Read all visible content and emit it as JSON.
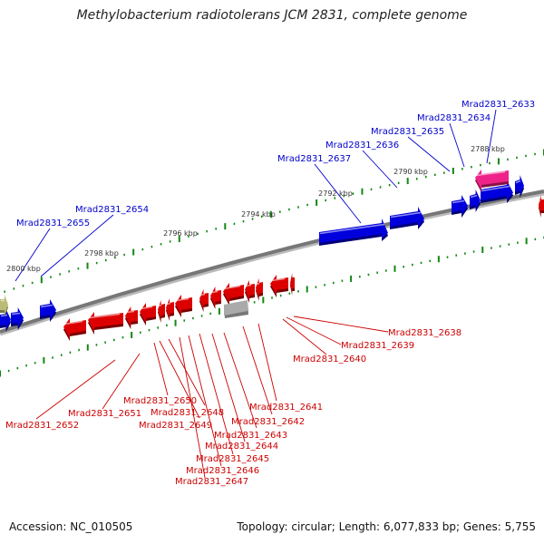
{
  "title": "Methylobacterium radiotolerans JCM 2831, complete genome",
  "footer": {
    "accession": "Accession: NC_010505",
    "summary": "Topology: circular; Length: 6,077,833 bp; Genes: 5,755"
  },
  "colors": {
    "forward_gene": "#0000dd",
    "reverse_gene": "#dd0000",
    "pink_gene": "#ee2288",
    "grey_gene": "#aaaaaa",
    "olive_gene": "#bbbb77",
    "backbone": "#777777",
    "tick": "#118811",
    "forward_label": "#0000cc",
    "reverse_label": "#cc0000"
  },
  "scale_ticks": [
    {
      "label": "2788 kbp"
    },
    {
      "label": "2790 kbp"
    },
    {
      "label": "2792 kbp"
    },
    {
      "label": "2794 kbp"
    },
    {
      "label": "2796 kbp"
    },
    {
      "label": "2798 kbp"
    },
    {
      "label": "2800 kbp"
    }
  ],
  "forward_genes": [
    {
      "label": "Mrad2831_2633"
    },
    {
      "label": "Mrad2831_2634"
    },
    {
      "label": "Mrad2831_2635"
    },
    {
      "label": "Mrad2831_2636"
    },
    {
      "label": "Mrad2831_2637"
    },
    {
      "label": "Mrad2831_2654"
    },
    {
      "label": "Mrad2831_2655"
    }
  ],
  "reverse_genes": [
    {
      "label": "Mrad2831_2638"
    },
    {
      "label": "Mrad2831_2639"
    },
    {
      "label": "Mrad2831_2640"
    },
    {
      "label": "Mrad2831_2641"
    },
    {
      "label": "Mrad2831_2642"
    },
    {
      "label": "Mrad2831_2643"
    },
    {
      "label": "Mrad2831_2644"
    },
    {
      "label": "Mrad2831_2645"
    },
    {
      "label": "Mrad2831_2646"
    },
    {
      "label": "Mrad2831_2647"
    },
    {
      "label": "Mrad2831_2648"
    },
    {
      "label": "Mrad2831_2649"
    },
    {
      "label": "Mrad2831_2650"
    },
    {
      "label": "Mrad2831_2651"
    },
    {
      "label": "Mrad2831_2652"
    }
  ]
}
